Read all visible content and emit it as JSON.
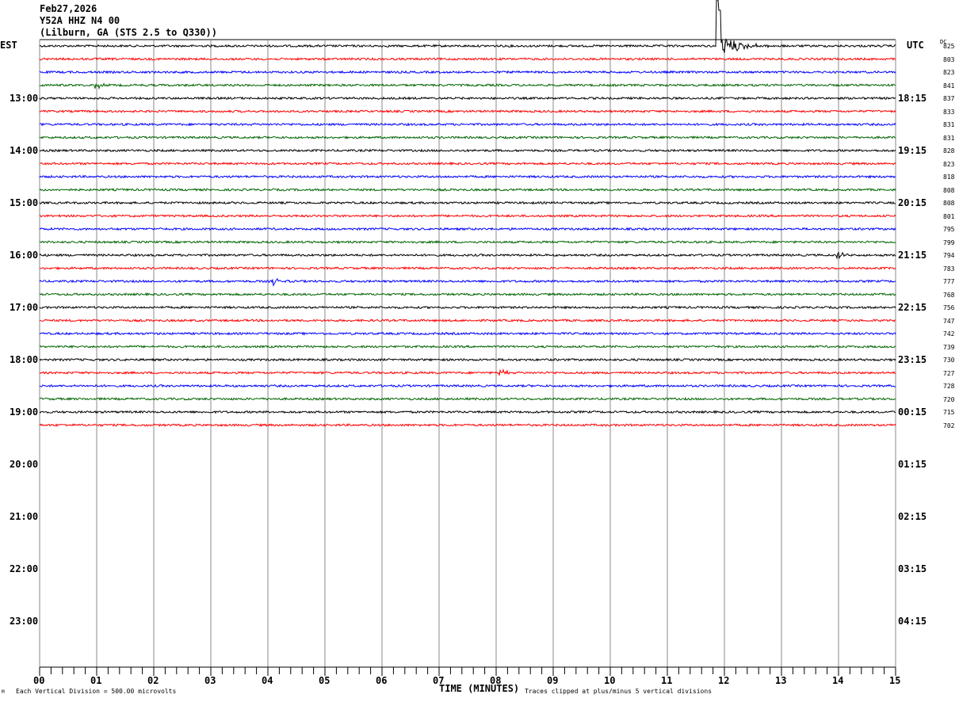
{
  "header": {
    "date": "Feb27,2026",
    "channel": "Y52A HHZ N4 00",
    "location": "(Lilburn, GA (STS 2.5 to Q330))"
  },
  "left_zone": "EST",
  "right_zone": "UTC",
  "dc_label": "DC",
  "footer": {
    "scale": "Each Vertical Division =  500.00 microvolts",
    "xlabel": "TIME (MINUTES)",
    "clip_note": "Traces clipped at plus/minus 5 vertical divisions",
    "corner": "M"
  },
  "chart_data": {
    "type": "line",
    "xlabel": "TIME (MINUTES)",
    "xlim": [
      0,
      15
    ],
    "x_ticks": [
      "00",
      "01",
      "02",
      "03",
      "04",
      "05",
      "06",
      "07",
      "08",
      "09",
      "10",
      "11",
      "12",
      "13",
      "14",
      "15"
    ],
    "est_hour_labels": [
      "13:00",
      "14:00",
      "15:00",
      "16:00",
      "17:00",
      "18:00",
      "19:00",
      "20:00",
      "21:00",
      "22:00",
      "23:00"
    ],
    "utc_hour_labels": [
      "18:15",
      "19:15",
      "20:15",
      "21:15",
      "22:15",
      "23:15",
      "00:15",
      "01:15",
      "02:15",
      "03:15",
      "04:15"
    ],
    "trace_colors": [
      "#000000",
      "#ff0000",
      "#0000ff",
      "#006400"
    ],
    "dc_values": [
      "825",
      "803",
      "823",
      "841",
      "837",
      "833",
      "831",
      "831",
      "828",
      "823",
      "818",
      "808",
      "808",
      "801",
      "795",
      "799",
      "794",
      "783",
      "777",
      "768",
      "756",
      "747",
      "742",
      "739",
      "730",
      "727",
      "728",
      "720",
      "715",
      "702"
    ],
    "events": [
      {
        "row": 0,
        "minute": 11.85,
        "amplitude": "clipped"
      },
      {
        "row": 3,
        "minute": 1.0,
        "amplitude": "small"
      },
      {
        "row": 18,
        "minute": 4.1,
        "amplitude": "small"
      },
      {
        "row": 16,
        "minute": 14.0,
        "amplitude": "small"
      },
      {
        "row": 25,
        "minute": 8.07,
        "amplitude": "small"
      }
    ]
  }
}
